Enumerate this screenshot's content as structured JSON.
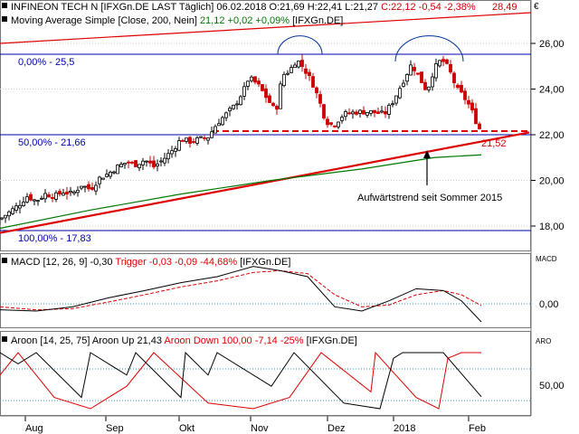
{
  "header": {
    "symbol": "INFINEON TECH N",
    "feed": "[IFXGn.DE LAST Täglich]",
    "date": "06.02.2018",
    "ohlc": "O:21,69 H:22,41 L:21,27",
    "close_change": "C:22,12 -0,54 -2,38%",
    "last": "28,49",
    "currency": "€"
  },
  "ma_label": {
    "name": "Moving Average Simple",
    "params": "[Close, 200, Nein]",
    "value": "21,12 +0,02 +0,09%",
    "feed": "[IFXGn.DE]"
  },
  "fib_labels": {
    "level_0": "0,00% - 25,5",
    "level_50": "50,00% - 21,66",
    "level_100": "100,00% - 17,83"
  },
  "annotation_trend": "Aufwärtstrend seit Sommer 2015",
  "support_value": "21,52",
  "macd_label": {
    "name": "MACD",
    "params": "[12, 26, 9]",
    "value": "-0,30",
    "trigger": "Trigger -0,03 -0,09 -44,68%",
    "feed": "[IFXGn.DE]",
    "panel_tag": "MACD"
  },
  "aroon_label": {
    "name": "Aroon",
    "params": "[14, 25, 75]",
    "up": "Aroon Up 21,43",
    "down": "Aroon Down 100,00 -7,14 -25%",
    "feed": "[IFXGn.DE]",
    "panel_tag": "ARO"
  },
  "colors": {
    "candle_up": "#000000",
    "candle_down": "#cc0000",
    "ma": "#007700",
    "trend": "#dd0000",
    "fib": "#0000aa",
    "macd_trigger": "#dd0000",
    "aroon_up": "#000000",
    "aroon_down": "#dd0000"
  },
  "chart_data": [
    {
      "type": "candlestick",
      "price_axis": {
        "min": 17.5,
        "max": 27.0,
        "ticks": [
          "26,00",
          "24,00",
          "22,00",
          "20,00",
          "18,00"
        ]
      },
      "x_ticks": [
        "Aug",
        "Sep",
        "Okt",
        "Nov",
        "Dez",
        "2018",
        "Feb"
      ],
      "close_path": [
        {
          "x": 0,
          "y": 18.3
        },
        {
          "x": 10,
          "y": 18.6
        },
        {
          "x": 20,
          "y": 18.9
        },
        {
          "x": 30,
          "y": 19.3
        },
        {
          "x": 40,
          "y": 19.1
        },
        {
          "x": 50,
          "y": 19.4
        },
        {
          "x": 60,
          "y": 19.3
        },
        {
          "x": 70,
          "y": 19.5
        },
        {
          "x": 80,
          "y": 19.4
        },
        {
          "x": 90,
          "y": 19.8
        },
        {
          "x": 100,
          "y": 19.6
        },
        {
          "x": 110,
          "y": 20.1
        },
        {
          "x": 120,
          "y": 20.3
        },
        {
          "x": 130,
          "y": 20.6
        },
        {
          "x": 140,
          "y": 20.8
        },
        {
          "x": 150,
          "y": 20.7
        },
        {
          "x": 160,
          "y": 20.9
        },
        {
          "x": 170,
          "y": 20.6
        },
        {
          "x": 180,
          "y": 20.9
        },
        {
          "x": 190,
          "y": 21.3
        },
        {
          "x": 200,
          "y": 21.8
        },
        {
          "x": 210,
          "y": 21.7
        },
        {
          "x": 220,
          "y": 21.8
        },
        {
          "x": 230,
          "y": 21.9
        },
        {
          "x": 240,
          "y": 22.5
        },
        {
          "x": 250,
          "y": 22.9
        },
        {
          "x": 260,
          "y": 23.3
        },
        {
          "x": 270,
          "y": 24.0
        },
        {
          "x": 275,
          "y": 24.5
        },
        {
          "x": 285,
          "y": 24.2
        },
        {
          "x": 295,
          "y": 23.6
        },
        {
          "x": 305,
          "y": 23.0
        },
        {
          "x": 312,
          "y": 24.6
        },
        {
          "x": 320,
          "y": 24.8
        },
        {
          "x": 328,
          "y": 25.3
        },
        {
          "x": 336,
          "y": 24.9
        },
        {
          "x": 345,
          "y": 24.3
        },
        {
          "x": 352,
          "y": 23.6
        },
        {
          "x": 360,
          "y": 22.6
        },
        {
          "x": 368,
          "y": 22.4
        },
        {
          "x": 380,
          "y": 22.9
        },
        {
          "x": 395,
          "y": 23.0
        },
        {
          "x": 410,
          "y": 23.0
        },
        {
          "x": 425,
          "y": 22.9
        },
        {
          "x": 435,
          "y": 23.5
        },
        {
          "x": 445,
          "y": 24.3
        },
        {
          "x": 455,
          "y": 25.1
        },
        {
          "x": 465,
          "y": 24.4
        },
        {
          "x": 472,
          "y": 23.9
        },
        {
          "x": 480,
          "y": 24.9
        },
        {
          "x": 488,
          "y": 25.3
        },
        {
          "x": 496,
          "y": 24.9
        },
        {
          "x": 505,
          "y": 24.0
        },
        {
          "x": 512,
          "y": 23.7
        },
        {
          "x": 520,
          "y": 23.2
        },
        {
          "x": 526,
          "y": 22.6
        },
        {
          "x": 532,
          "y": 22.1
        }
      ],
      "moving_average_200": [
        {
          "x": 0,
          "y": 17.9
        },
        {
          "x": 100,
          "y": 18.7
        },
        {
          "x": 200,
          "y": 19.4
        },
        {
          "x": 300,
          "y": 20.0
        },
        {
          "x": 400,
          "y": 20.5
        },
        {
          "x": 480,
          "y": 21.0
        },
        {
          "x": 532,
          "y": 21.12
        }
      ],
      "trend_line": [
        {
          "x": 0,
          "y": 17.7
        },
        {
          "x": 585,
          "y": 22.1
        }
      ],
      "fib_levels": [
        25.5,
        21.66,
        17.83
      ],
      "resistance_line": 21.9,
      "support_value": 21.52
    },
    {
      "type": "line",
      "name": "MACD",
      "y_ticks": [
        "0,00"
      ],
      "macd": [
        {
          "x": 0,
          "y": -0.1
        },
        {
          "x": 40,
          "y": -0.12
        },
        {
          "x": 80,
          "y": -0.05
        },
        {
          "x": 120,
          "y": 0.1
        },
        {
          "x": 160,
          "y": 0.22
        },
        {
          "x": 200,
          "y": 0.35
        },
        {
          "x": 240,
          "y": 0.45
        },
        {
          "x": 280,
          "y": 0.62
        },
        {
          "x": 310,
          "y": 0.55
        },
        {
          "x": 340,
          "y": 0.45
        },
        {
          "x": 370,
          "y": -0.05
        },
        {
          "x": 400,
          "y": -0.12
        },
        {
          "x": 430,
          "y": 0.05
        },
        {
          "x": 460,
          "y": 0.25
        },
        {
          "x": 490,
          "y": 0.22
        },
        {
          "x": 510,
          "y": 0.05
        },
        {
          "x": 532,
          "y": -0.3
        }
      ],
      "trigger": [
        {
          "x": 0,
          "y": -0.05
        },
        {
          "x": 40,
          "y": -0.1
        },
        {
          "x": 80,
          "y": -0.08
        },
        {
          "x": 120,
          "y": 0.03
        },
        {
          "x": 160,
          "y": 0.15
        },
        {
          "x": 200,
          "y": 0.28
        },
        {
          "x": 240,
          "y": 0.38
        },
        {
          "x": 280,
          "y": 0.52
        },
        {
          "x": 310,
          "y": 0.55
        },
        {
          "x": 340,
          "y": 0.5
        },
        {
          "x": 370,
          "y": 0.15
        },
        {
          "x": 400,
          "y": -0.05
        },
        {
          "x": 430,
          "y": -0.02
        },
        {
          "x": 460,
          "y": 0.15
        },
        {
          "x": 490,
          "y": 0.22
        },
        {
          "x": 510,
          "y": 0.15
        },
        {
          "x": 532,
          "y": -0.03
        }
      ]
    },
    {
      "type": "line",
      "name": "Aroon",
      "y_ticks": [
        "50,00"
      ],
      "aroon_up": [
        {
          "x": 0,
          "y": 100
        },
        {
          "x": 20,
          "y": 80
        },
        {
          "x": 40,
          "y": 100
        },
        {
          "x": 90,
          "y": 20
        },
        {
          "x": 100,
          "y": 100
        },
        {
          "x": 140,
          "y": 60
        },
        {
          "x": 150,
          "y": 100
        },
        {
          "x": 200,
          "y": 20
        },
        {
          "x": 205,
          "y": 100
        },
        {
          "x": 230,
          "y": 60
        },
        {
          "x": 240,
          "y": 100
        },
        {
          "x": 300,
          "y": 40
        },
        {
          "x": 325,
          "y": 100
        },
        {
          "x": 380,
          "y": 10
        },
        {
          "x": 420,
          "y": 0
        },
        {
          "x": 435,
          "y": 90
        },
        {
          "x": 445,
          "y": 100
        },
        {
          "x": 490,
          "y": 100
        },
        {
          "x": 532,
          "y": 21.43
        }
      ],
      "aroon_down": [
        {
          "x": 0,
          "y": 60
        },
        {
          "x": 20,
          "y": 100
        },
        {
          "x": 60,
          "y": 20
        },
        {
          "x": 100,
          "y": 0
        },
        {
          "x": 140,
          "y": 40
        },
        {
          "x": 170,
          "y": 100
        },
        {
          "x": 230,
          "y": 10
        },
        {
          "x": 280,
          "y": 0
        },
        {
          "x": 320,
          "y": 20
        },
        {
          "x": 355,
          "y": 100
        },
        {
          "x": 410,
          "y": 30
        },
        {
          "x": 415,
          "y": 100
        },
        {
          "x": 460,
          "y": 20
        },
        {
          "x": 485,
          "y": 0
        },
        {
          "x": 495,
          "y": 90
        },
        {
          "x": 510,
          "y": 100
        },
        {
          "x": 532,
          "y": 100
        }
      ]
    }
  ]
}
